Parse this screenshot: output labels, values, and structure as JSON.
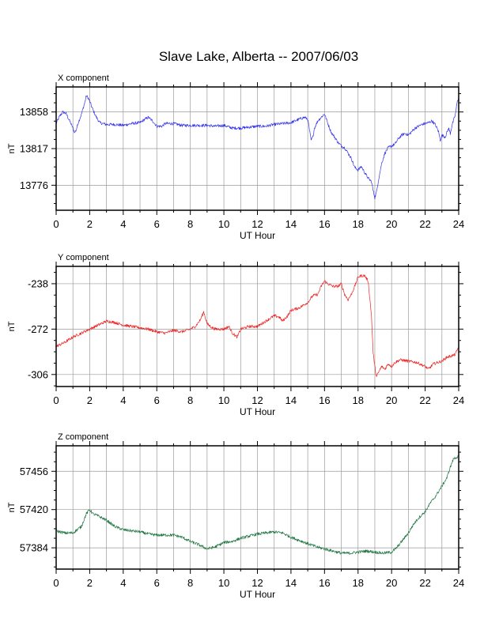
{
  "title": "Slave Lake, Alberta -- 2007/06/03",
  "colors": {
    "x_component": "#3333ee",
    "y_component": "#ee2222",
    "z_component": "#227744",
    "grid": "#9a9a9a",
    "frame": "#000000"
  },
  "chart_data": [
    {
      "type": "line",
      "title": "X component",
      "xlabel": "UT Hour",
      "ylabel": "nT",
      "xlim": [
        0,
        24
      ],
      "ylim": [
        13748,
        13886
      ],
      "xticks": [
        0,
        2,
        4,
        6,
        8,
        10,
        12,
        14,
        16,
        18,
        20,
        22,
        24
      ],
      "yticks": [
        13858,
        13817,
        13776
      ],
      "grid": true,
      "series": [
        {
          "color": "#3333ee",
          "x": [
            0,
            0.2,
            0.4,
            0.6,
            0.8,
            1.0,
            1.1,
            1.2,
            1.3,
            1.5,
            1.7,
            1.8,
            1.9,
            2.0,
            2.2,
            2.4,
            2.6,
            2.8,
            3.0,
            3.5,
            4.0,
            4.5,
            5.0,
            5.3,
            5.5,
            5.8,
            6.0,
            6.3,
            6.5,
            7.0,
            7.5,
            8.0,
            8.5,
            9.0,
            9.5,
            10.0,
            10.5,
            11.0,
            11.5,
            12.0,
            12.5,
            13.0,
            13.5,
            14.0,
            14.5,
            14.8,
            15.0,
            15.1,
            15.2,
            15.3,
            15.4,
            15.6,
            15.8,
            16.0,
            16.2,
            16.4,
            16.6,
            16.8,
            17.0,
            17.2,
            17.4,
            17.6,
            17.8,
            18.0,
            18.2,
            18.4,
            18.6,
            18.8,
            18.9,
            19.0,
            19.1,
            19.2,
            19.4,
            19.6,
            19.8,
            20.0,
            20.2,
            20.4,
            20.6,
            20.8,
            21.0,
            21.2,
            21.4,
            21.6,
            21.8,
            22.0,
            22.2,
            22.4,
            22.6,
            22.8,
            22.9,
            23.0,
            23.2,
            23.4,
            23.5,
            23.6,
            23.8,
            23.9,
            24.0
          ],
          "y": [
            13845,
            13853,
            13858,
            13856,
            13848,
            13840,
            13835,
            13838,
            13845,
            13855,
            13868,
            13876,
            13874,
            13870,
            13860,
            13852,
            13846,
            13845,
            13844,
            13844,
            13843,
            13845,
            13846,
            13850,
            13852,
            13847,
            13842,
            13842,
            13845,
            13845,
            13843,
            13843,
            13843,
            13843,
            13842,
            13843,
            13840,
            13840,
            13841,
            13842,
            13842,
            13844,
            13845,
            13846,
            13850,
            13852,
            13850,
            13838,
            13826,
            13830,
            13840,
            13848,
            13852,
            13856,
            13845,
            13835,
            13830,
            13824,
            13820,
            13818,
            13812,
            13806,
            13796,
            13793,
            13797,
            13790,
            13784,
            13780,
            13770,
            13762,
            13768,
            13780,
            13800,
            13812,
            13818,
            13820,
            13822,
            13828,
            13832,
            13834,
            13832,
            13836,
            13840,
            13842,
            13844,
            13845,
            13846,
            13848,
            13844,
            13836,
            13826,
            13832,
            13830,
            13840,
            13834,
            13843,
            13855,
            13868,
            13875
          ]
        }
      ]
    },
    {
      "type": "line",
      "title": "Y component",
      "xlabel": "UT Hour",
      "ylabel": "nT",
      "xlim": [
        0,
        24
      ],
      "ylim": [
        -315,
        -225
      ],
      "xticks": [
        0,
        2,
        4,
        6,
        8,
        10,
        12,
        14,
        16,
        18,
        20,
        22,
        24
      ],
      "yticks": [
        -238,
        -272,
        -306
      ],
      "grid": true,
      "series": [
        {
          "color": "#ee2222",
          "x": [
            0,
            0.5,
            1.0,
            1.5,
            2.0,
            2.5,
            3.0,
            3.5,
            4.0,
            4.5,
            5.0,
            5.5,
            6.0,
            6.5,
            7.0,
            7.5,
            8.0,
            8.3,
            8.6,
            8.8,
            9.0,
            9.3,
            9.5,
            10.0,
            10.3,
            10.5,
            10.8,
            11.0,
            11.5,
            12.0,
            12.5,
            13.0,
            13.3,
            13.5,
            13.8,
            14.0,
            14.5,
            15.0,
            15.3,
            15.6,
            15.8,
            16.0,
            16.2,
            16.5,
            16.8,
            17.0,
            17.2,
            17.4,
            17.6,
            17.8,
            18.0,
            18.2,
            18.4,
            18.6,
            18.8,
            18.9,
            19.0,
            19.1,
            19.2,
            19.4,
            19.6,
            19.8,
            20.0,
            20.2,
            20.5,
            21.0,
            21.5,
            22.0,
            22.2,
            22.5,
            23.0,
            23.3,
            23.6,
            23.8,
            24.0
          ],
          "y": [
            -285,
            -282,
            -278,
            -275,
            -272,
            -269,
            -266,
            -267,
            -269,
            -270,
            -271,
            -272,
            -274,
            -275,
            -273,
            -274,
            -272,
            -270,
            -265,
            -259,
            -268,
            -271,
            -272,
            -272,
            -270,
            -275,
            -278,
            -272,
            -270,
            -270,
            -266,
            -262,
            -263,
            -266,
            -262,
            -258,
            -256,
            -252,
            -247,
            -246,
            -240,
            -236,
            -238,
            -240,
            -240,
            -238,
            -246,
            -250,
            -246,
            -240,
            -233,
            -232,
            -232,
            -236,
            -262,
            -290,
            -300,
            -308,
            -305,
            -300,
            -302,
            -298,
            -300,
            -297,
            -295,
            -296,
            -297,
            -300,
            -302,
            -298,
            -296,
            -293,
            -292,
            -291,
            -285
          ]
        }
      ]
    },
    {
      "type": "line",
      "title": "Z component",
      "xlabel": "UT Hour",
      "ylabel": "nT",
      "xlim": [
        0,
        24
      ],
      "ylim": [
        57364,
        57480
      ],
      "xticks": [
        0,
        2,
        4,
        6,
        8,
        10,
        12,
        14,
        16,
        18,
        20,
        22,
        24
      ],
      "yticks": [
        57456,
        57420,
        57384
      ],
      "grid": true,
      "series": [
        {
          "color": "#227744",
          "x": [
            0,
            0.5,
            1.0,
            1.5,
            1.8,
            2.0,
            2.2,
            2.5,
            3.0,
            3.5,
            4.0,
            4.5,
            5.0,
            5.5,
            6.0,
            6.5,
            7.0,
            7.5,
            8.0,
            8.5,
            9.0,
            9.5,
            10.0,
            10.5,
            11.0,
            11.5,
            12.0,
            12.5,
            13.0,
            13.5,
            14.0,
            14.5,
            15.0,
            15.5,
            16.0,
            16.5,
            17.0,
            17.5,
            18.0,
            18.5,
            19.0,
            19.5,
            20.0,
            20.3,
            20.6,
            21.0,
            21.3,
            21.6,
            22.0,
            22.3,
            22.6,
            23.0,
            23.3,
            23.5,
            23.7,
            24.0
          ],
          "y": [
            57400,
            57398,
            57398,
            57404,
            57416,
            57420,
            57416,
            57414,
            57410,
            57404,
            57401,
            57400,
            57399,
            57397,
            57396,
            57396,
            57396,
            57394,
            57390,
            57387,
            57383,
            57385,
            57389,
            57390,
            57393,
            57395,
            57397,
            57398,
            57399,
            57398,
            57394,
            57391,
            57388,
            57385,
            57383,
            57381,
            57379,
            57379,
            57380,
            57381,
            57380,
            57379,
            57380,
            57384,
            57390,
            57398,
            57406,
            57412,
            57418,
            57426,
            57432,
            57442,
            57450,
            57460,
            57468,
            57470
          ]
        }
      ]
    }
  ]
}
